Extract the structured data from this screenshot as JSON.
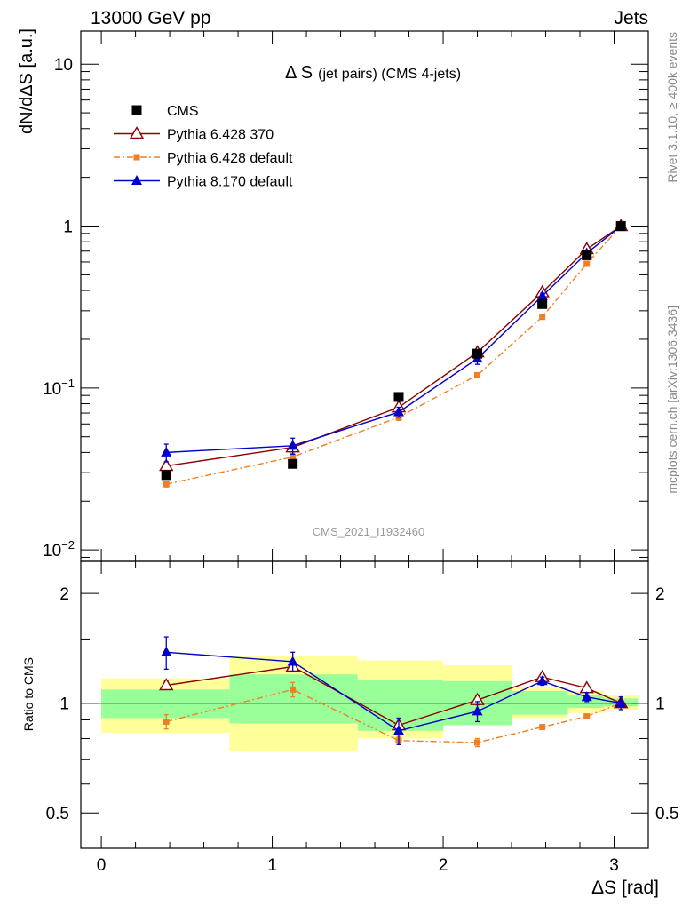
{
  "header": {
    "left": "13000 GeV pp",
    "right": "Jets"
  },
  "side_labels": {
    "rivet": "Rivet 3.1.10, ≥ 400k events",
    "mcplots": "mcplots.cern.ch [arXiv:1306.3436]"
  },
  "chart_data": [
    {
      "type": "line",
      "panel": "main",
      "title_main": "Δ S",
      "title_sub": "(jet pairs) (CMS 4-jets)",
      "watermark": "CMS_2021_I1932460",
      "ylabel": "dN/dΔS [a.u.]",
      "yscale": "log",
      "ylim": [
        0.0085,
        16
      ],
      "xlim": [
        -0.12,
        3.2
      ],
      "yticklabels": [
        {
          "value": 0.01,
          "base": "10",
          "exp": "−2"
        },
        {
          "value": 0.1,
          "base": "10",
          "exp": "−1"
        },
        {
          "value": 1,
          "base": "1",
          "exp": ""
        },
        {
          "value": 10,
          "base": "10",
          "exp": ""
        }
      ],
      "legend_position": "top-left",
      "series": [
        {
          "name": "CMS",
          "marker": "square",
          "color": "#000000",
          "x": [
            0.38,
            1.12,
            1.74,
            2.2,
            2.58,
            2.84,
            3.04
          ],
          "y": [
            0.029,
            0.034,
            0.088,
            0.163,
            0.33,
            0.66,
            1.0
          ]
        },
        {
          "name": "Pythia 6.428 370",
          "marker": "open-triangle",
          "color": "#8b0000",
          "x": [
            0.38,
            1.12,
            1.74,
            2.2,
            2.58,
            2.84,
            3.04
          ],
          "y": [
            0.033,
            0.043,
            0.076,
            0.166,
            0.39,
            0.72,
            1.0
          ],
          "yerr": [
            0.002,
            0.002,
            0.003,
            0.005,
            0.008,
            0.012,
            0.0
          ]
        },
        {
          "name": "Pythia 6.428 default",
          "marker": "small-square",
          "style": "dash-dot",
          "color": "#f07e26",
          "x": [
            0.38,
            1.12,
            1.74,
            2.2,
            2.58,
            2.84,
            3.04
          ],
          "y": [
            0.0255,
            0.0375,
            0.066,
            0.12,
            0.275,
            0.585,
            1.0
          ],
          "yerr": [
            0.001,
            0.002,
            0.003,
            0.004,
            0.006,
            0.01,
            0.0
          ]
        },
        {
          "name": "Pythia 8.170 default",
          "marker": "triangle",
          "color": "#0000cc",
          "x": [
            0.38,
            1.12,
            1.74,
            2.2,
            2.58,
            2.84,
            3.04
          ],
          "y": [
            0.04,
            0.044,
            0.071,
            0.152,
            0.37,
            0.68,
            1.0
          ],
          "yerr": [
            0.005,
            0.005,
            0.005,
            0.012,
            0.015,
            0.02,
            0.0
          ]
        }
      ]
    },
    {
      "type": "line",
      "panel": "ratio",
      "ylabel": "Ratio to CMS",
      "xlabel": "ΔS [rad]",
      "yscale": "log",
      "ylim": [
        0.4,
        2.45
      ],
      "xlim": [
        -0.12,
        3.2
      ],
      "xticks": [
        0,
        1,
        2,
        3
      ],
      "xticklabels": [
        "0",
        "1",
        "2",
        "3"
      ],
      "yticks": [
        0.5,
        1,
        2
      ],
      "yticklabels": [
        "0.5",
        "1",
        "2"
      ],
      "reference_line": 1,
      "bands": {
        "bin_edges": [
          0,
          0.75,
          1.5,
          2.0,
          2.4,
          2.73,
          2.94,
          3.14
        ],
        "inner": [
          [
            0.91,
            1.09
          ],
          [
            0.88,
            1.2
          ],
          [
            0.84,
            1.16
          ],
          [
            0.87,
            1.15
          ],
          [
            0.93,
            1.08
          ],
          [
            0.97,
            1.05
          ],
          [
            0.98,
            1.03
          ]
        ],
        "outer": [
          [
            0.83,
            1.17
          ],
          [
            0.74,
            1.35
          ],
          [
            0.8,
            1.31
          ],
          [
            0.87,
            1.27
          ],
          [
            0.91,
            1.11
          ],
          [
            0.94,
            1.08
          ],
          [
            0.96,
            1.05
          ]
        ],
        "inner_color": "#99ff99",
        "outer_color": "#ffff99"
      },
      "series": [
        {
          "name": "Pythia 6.428 370",
          "color": "#8b0000",
          "x": [
            0.38,
            1.12,
            1.74,
            2.2,
            2.58,
            2.84,
            3.04
          ],
          "y": [
            1.12,
            1.26,
            0.87,
            1.02,
            1.18,
            1.1,
            1.0
          ],
          "yerr": [
            0.03,
            0.04,
            0.04,
            0.03,
            0.02,
            0.02,
            0.02
          ]
        },
        {
          "name": "Pythia 6.428 default",
          "color": "#f07e26",
          "x": [
            0.38,
            1.12,
            1.74,
            2.2,
            2.58,
            2.84,
            3.04
          ],
          "y": [
            0.89,
            1.09,
            0.79,
            0.78,
            0.86,
            0.92,
            1.0
          ],
          "yerr": [
            0.04,
            0.05,
            0.02,
            0.02,
            0.01,
            0.01,
            0.01
          ]
        },
        {
          "name": "Pythia 8.170 default",
          "color": "#0000cc",
          "x": [
            0.38,
            1.12,
            1.74,
            2.2,
            2.58,
            2.84,
            3.04
          ],
          "y": [
            1.38,
            1.3,
            0.84,
            0.95,
            1.15,
            1.04,
            1.0
          ],
          "yerr": [
            0.14,
            0.08,
            0.07,
            0.06,
            0.03,
            0.03,
            0.04
          ]
        }
      ]
    }
  ]
}
